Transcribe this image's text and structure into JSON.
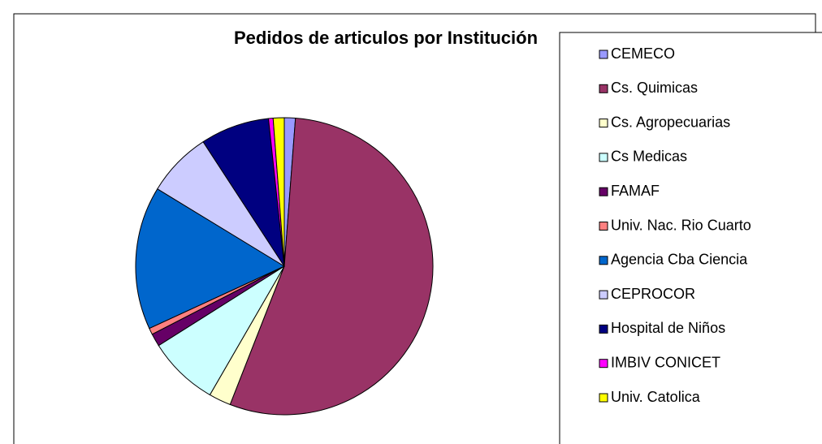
{
  "chart_data": {
    "type": "pie",
    "title": "Pedidos de articulos por Institución",
    "categories": [
      "CEMECO",
      "Cs. Quimicas",
      "Cs. Agropecuarias",
      "Cs Medicas",
      "FAMAF",
      "Univ. Nac. Rio Cuarto",
      "Agencia Cba Ciencia",
      "CEPROCOR",
      "Hospital de Niños",
      "IMBIV CONICET",
      "Univ. Catolica"
    ],
    "values": [
      1.2,
      54.8,
      2.4,
      7.7,
      1.4,
      0.7,
      15.6,
      7.1,
      7.5,
      0.5,
      1.2
    ],
    "colors": [
      "#9999ff",
      "#993366",
      "#ffffcc",
      "#ccffff",
      "#660066",
      "#ff8080",
      "#0066cc",
      "#ccccff",
      "#000080",
      "#ff00ff",
      "#ffff00"
    ],
    "legend": "right"
  }
}
